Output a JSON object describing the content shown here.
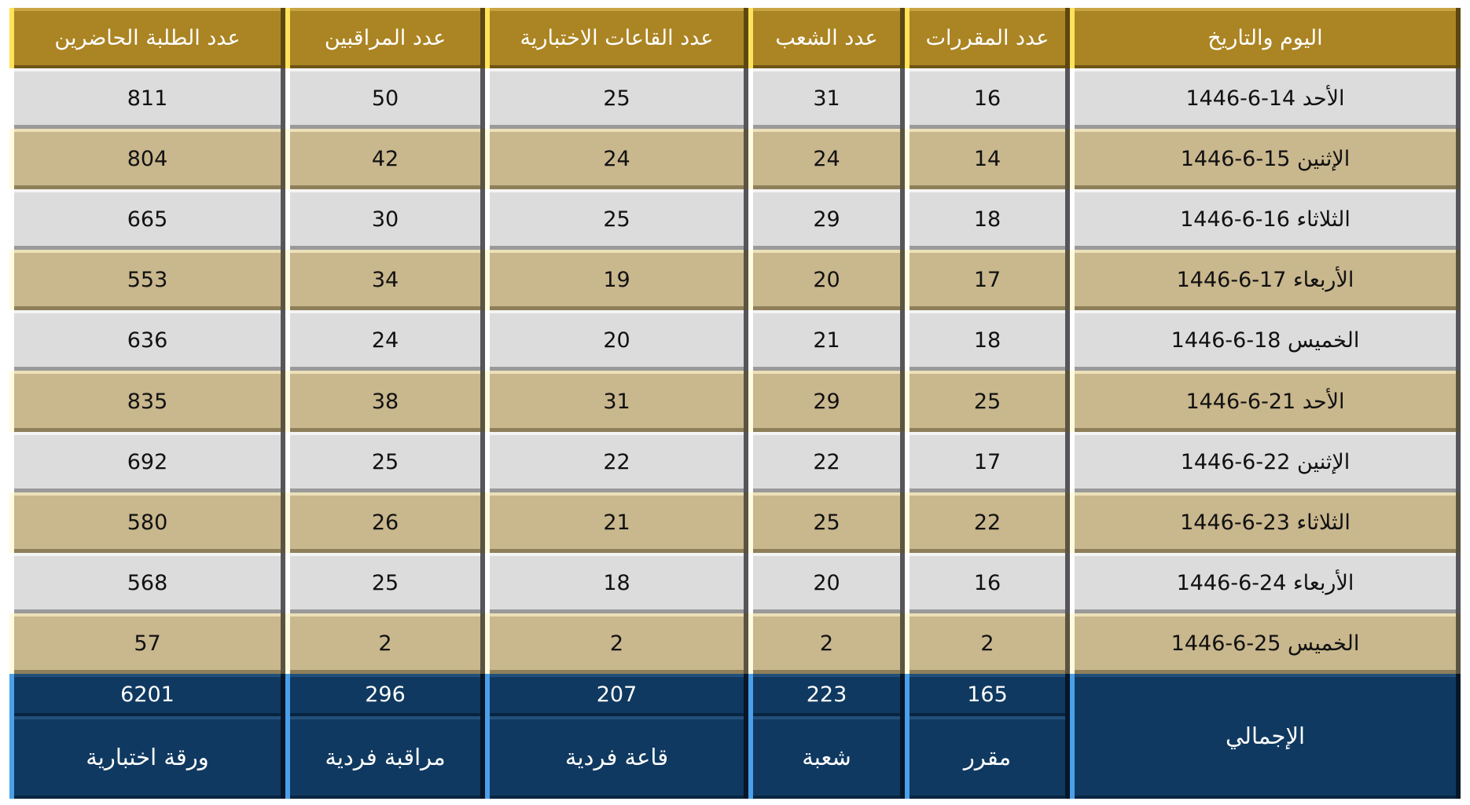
{
  "headers": [
    "اليوم والتاريخ",
    "عدد المقررات",
    "عدد الشعب",
    "عدد القاعات الاختبارية",
    "عدد المراقبين",
    "عدد الطلبة الحاضرين"
  ],
  "rows": [
    [
      "الأحد 14-6-1446",
      "16",
      "31",
      "25",
      "50",
      "811"
    ],
    [
      "الإثنين 15-6-1446",
      "14",
      "24",
      "24",
      "42",
      "804"
    ],
    [
      "الثلاثاء 16-6-1446",
      "18",
      "29",
      "25",
      "30",
      "665"
    ],
    [
      "الأربعاء 17-6-1446",
      "17",
      "20",
      "19",
      "34",
      "553"
    ],
    [
      "الخميس 18-6-1446",
      "18",
      "21",
      "20",
      "24",
      "636"
    ],
    [
      "الأحد 21-6-1446",
      "25",
      "29",
      "31",
      "38",
      "835"
    ],
    [
      "الإثنين 22-6-1446",
      "17",
      "22",
      "22",
      "25",
      "692"
    ],
    [
      "الثلاثاء 23-6-1446",
      "22",
      "25",
      "21",
      "26",
      "580"
    ],
    [
      "الأربعاء 24-6-1446",
      "16",
      "20",
      "18",
      "25",
      "568"
    ],
    [
      "الخميس 25-6-1446",
      "2",
      "2",
      "2",
      "2",
      "57"
    ]
  ],
  "totals": {
    "label": "الإجمالي",
    "values": [
      "165",
      "223",
      "207",
      "296",
      "6201"
    ],
    "units": [
      "مقرر",
      "شعبة",
      "قاعة فردية",
      "مراقبة فردية",
      "ورقة اختبارية"
    ]
  },
  "colors": {
    "header": "#ab8423",
    "row_light": "#dcdcdc",
    "row_dark": "#c9b78d",
    "totals": "#0f3960"
  }
}
